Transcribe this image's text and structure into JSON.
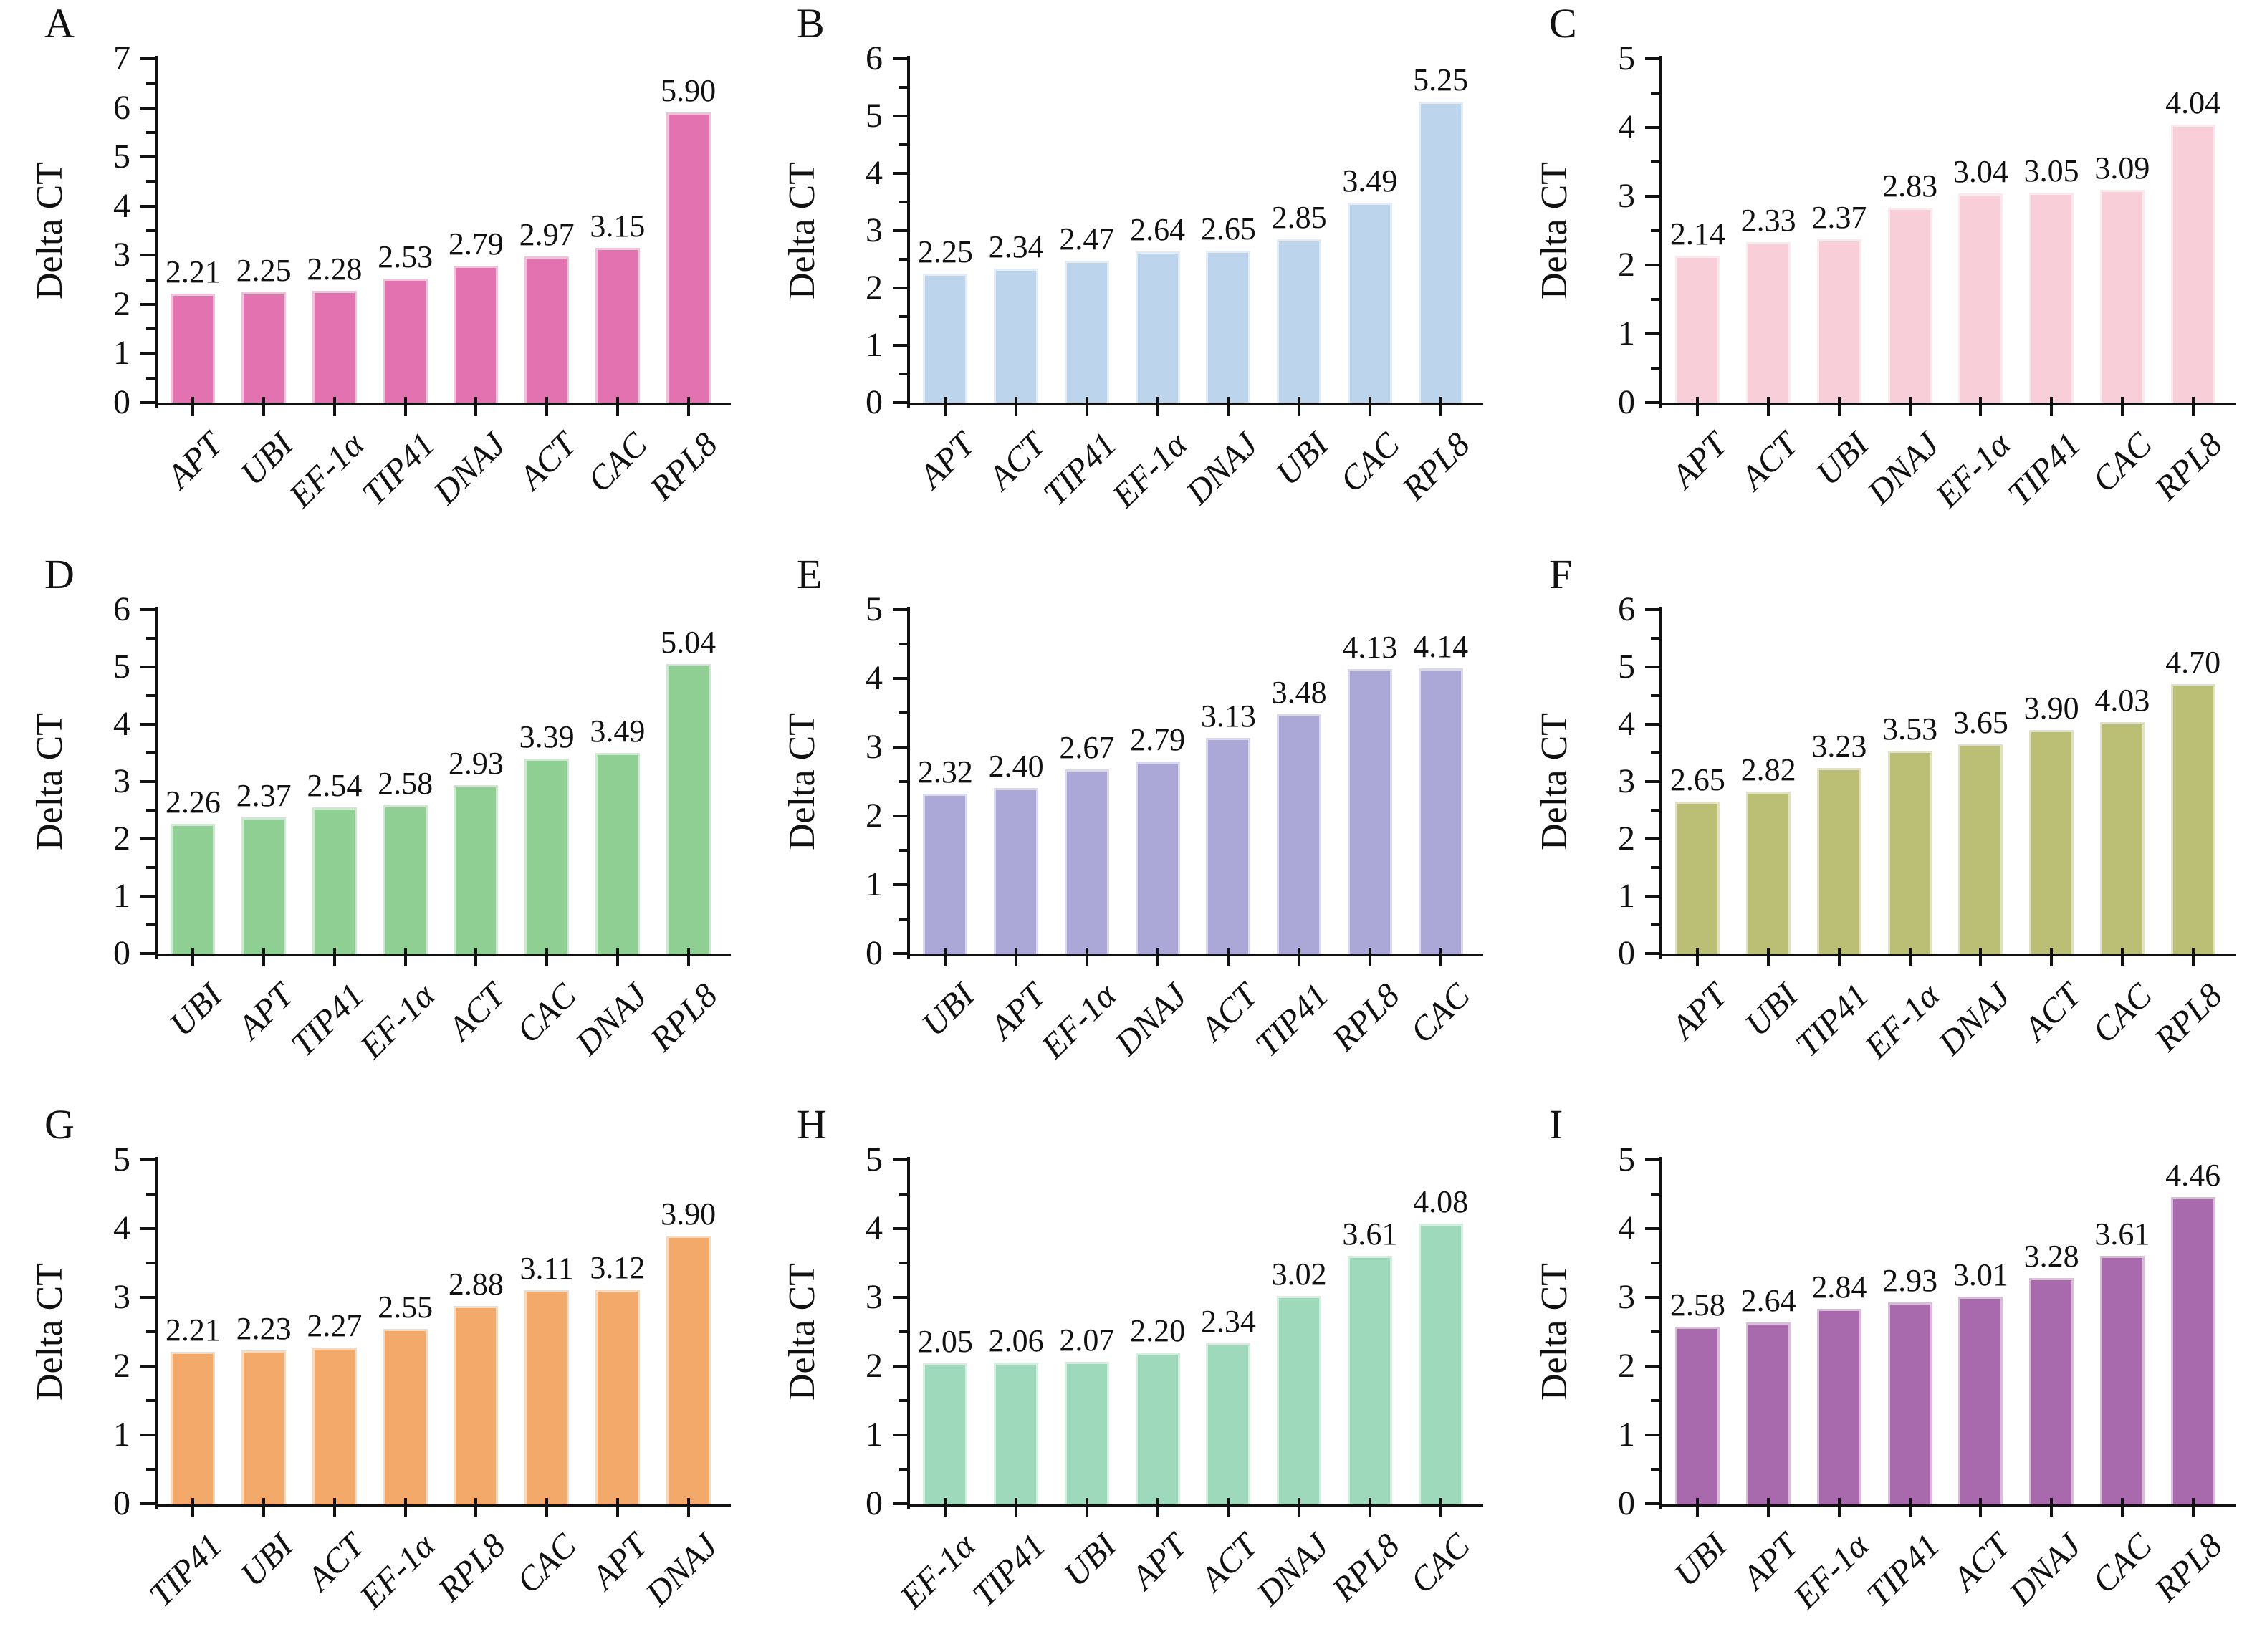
{
  "figure": {
    "ylabel": "Delta CT",
    "panels": [
      "A",
      "B",
      "C",
      "D",
      "E",
      "F",
      "G",
      "H",
      "I"
    ]
  },
  "chart_data": [
    {
      "type": "bar",
      "panel": "A",
      "title": "A",
      "ylabel": "Delta CT",
      "ylim": [
        0,
        7
      ],
      "bar_color": "#E272B0",
      "categories": [
        "APT",
        "UBI",
        "EF-1α",
        "TIP41",
        "DNAJ",
        "ACT",
        "CAC",
        "RPL8"
      ],
      "values": [
        2.21,
        2.25,
        2.28,
        2.53,
        2.79,
        2.97,
        3.15,
        5.9
      ]
    },
    {
      "type": "bar",
      "panel": "B",
      "title": "B",
      "ylabel": "Delta CT",
      "ylim": [
        0,
        6
      ],
      "bar_color": "#BCD4EC",
      "categories": [
        "APT",
        "ACT",
        "TIP41",
        "EF-1α",
        "DNAJ",
        "UBI",
        "CAC",
        "RPL8"
      ],
      "values": [
        2.25,
        2.34,
        2.47,
        2.64,
        2.65,
        2.85,
        3.49,
        5.25
      ]
    },
    {
      "type": "bar",
      "panel": "C",
      "title": "C",
      "ylabel": "Delta CT",
      "ylim": [
        0,
        5
      ],
      "bar_color": "#F8CED9",
      "categories": [
        "APT",
        "ACT",
        "UBI",
        "DNAJ",
        "EF-1α",
        "TIP41",
        "CAC",
        "RPL8"
      ],
      "values": [
        2.14,
        2.33,
        2.37,
        2.83,
        3.04,
        3.05,
        3.09,
        4.04
      ]
    },
    {
      "type": "bar",
      "panel": "D",
      "title": "D",
      "ylabel": "Delta CT",
      "ylim": [
        0,
        6
      ],
      "bar_color": "#90CF94",
      "categories": [
        "UBI",
        "APT",
        "TIP41",
        "EF-1α",
        "ACT",
        "CAC",
        "DNAJ",
        "RPL8"
      ],
      "values": [
        2.26,
        2.37,
        2.54,
        2.58,
        2.93,
        3.39,
        3.49,
        5.04
      ]
    },
    {
      "type": "bar",
      "panel": "E",
      "title": "E",
      "ylabel": "Delta CT",
      "ylim": [
        0,
        5
      ],
      "bar_color": "#ABA8D8",
      "categories": [
        "UBI",
        "APT",
        "EF-1α",
        "DNAJ",
        "ACT",
        "TIP41",
        "RPL8",
        "CAC"
      ],
      "values": [
        2.32,
        2.4,
        2.67,
        2.79,
        3.13,
        3.48,
        4.13,
        4.14
      ]
    },
    {
      "type": "bar",
      "panel": "F",
      "title": "F",
      "ylabel": "Delta CT",
      "ylim": [
        0,
        6
      ],
      "bar_color": "#BBBE75",
      "categories": [
        "APT",
        "UBI",
        "TIP41",
        "EF-1α",
        "DNAJ",
        "ACT",
        "CAC",
        "RPL8"
      ],
      "values": [
        2.65,
        2.82,
        3.23,
        3.53,
        3.65,
        3.9,
        4.03,
        4.7
      ]
    },
    {
      "type": "bar",
      "panel": "G",
      "title": "G",
      "ylabel": "Delta CT",
      "ylim": [
        0,
        5
      ],
      "bar_color": "#F3A969",
      "categories": [
        "TIP41",
        "UBI",
        "ACT",
        "EF-1α",
        "RPL8",
        "CAC",
        "APT",
        "DNAJ"
      ],
      "values": [
        2.21,
        2.23,
        2.27,
        2.55,
        2.88,
        3.11,
        3.12,
        3.9
      ]
    },
    {
      "type": "bar",
      "panel": "H",
      "title": "H",
      "ylabel": "Delta CT",
      "ylim": [
        0,
        5
      ],
      "bar_color": "#9FD9BB",
      "categories": [
        "EF-1α",
        "TIP41",
        "UBI",
        "APT",
        "ACT",
        "DNAJ",
        "RPL8",
        "CAC"
      ],
      "values": [
        2.05,
        2.06,
        2.07,
        2.2,
        2.34,
        3.02,
        3.61,
        4.08
      ]
    },
    {
      "type": "bar",
      "panel": "I",
      "title": "I",
      "ylabel": "Delta CT",
      "ylim": [
        0,
        5
      ],
      "bar_color": "#A869AD",
      "categories": [
        "UBI",
        "APT",
        "EF-1α",
        "TIP41",
        "ACT",
        "DNAJ",
        "CAC",
        "RPL8"
      ],
      "values": [
        2.58,
        2.64,
        2.84,
        2.93,
        3.01,
        3.28,
        3.61,
        4.46
      ]
    }
  ]
}
